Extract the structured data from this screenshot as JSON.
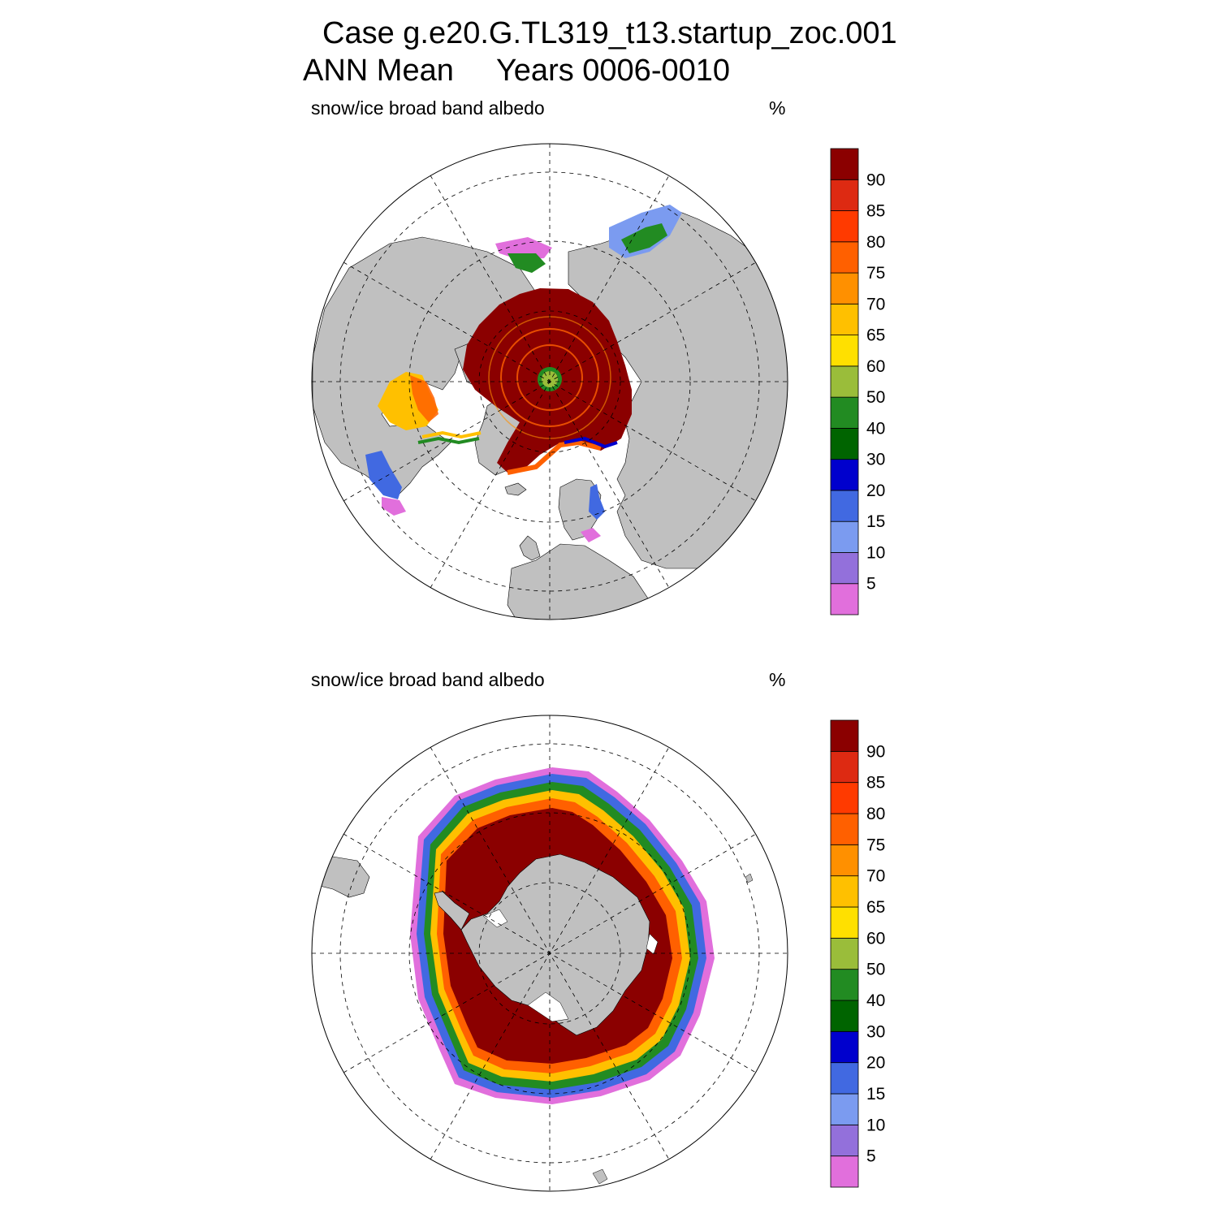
{
  "title": {
    "line1": "Case g.e20.G.TL319_t13.startup_zoc.001",
    "line2": "ANN Mean     Years 0006-0010"
  },
  "panels": [
    {
      "id": "north",
      "hemisphere": "Northern Hemisphere (polar stereographic)",
      "label": "snow/ice broad band albedo",
      "units": "%"
    },
    {
      "id": "south",
      "hemisphere": "Southern Hemisphere (polar stereographic)",
      "label": "snow/ice broad band albedo",
      "units": "%"
    }
  ],
  "colorbar": {
    "levels": [
      "5",
      "10",
      "15",
      "20",
      "30",
      "40",
      "50",
      "60",
      "65",
      "70",
      "75",
      "80",
      "85",
      "90"
    ],
    "colors": [
      "#e16fdc",
      "#9370db",
      "#7b9bf0",
      "#4169e1",
      "#0000cd",
      "#006400",
      "#228b22",
      "#9abd3a",
      "#ffe000",
      "#ffc000",
      "#ff9000",
      "#ff6000",
      "#ff3a00",
      "#dd2a12",
      "#8b0000"
    ]
  },
  "map_style": {
    "land_color": "#c0c0c0",
    "ocean_color": "#ffffff",
    "gridlines": "dashed"
  }
}
